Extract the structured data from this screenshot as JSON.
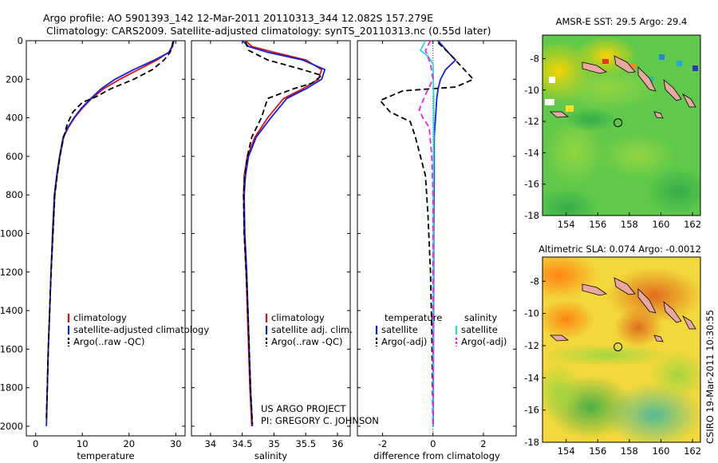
{
  "header": {
    "line1": "Argo profile: AO 5901393_142 12-Mar-2011 20110313_344 12.082S 157.279E",
    "line2": "Climatology: CARS2009. Satellite-adjusted climatology: synTS_20110313.nc (0.55d later)"
  },
  "annotations": {
    "project": "US ARGO PROJECT",
    "pi": "PI: GREGORY C. JOHNSON",
    "stamp": "CSIRO 19-Mar-2011 10:30:55"
  },
  "colors": {
    "climatology": "#dd1111",
    "satellite": "#1122dd",
    "argo": "#000000",
    "cyan": "#22dddd",
    "magenta": "#ee22ee"
  },
  "chart_data": [
    {
      "type": "line",
      "xlabel": "temperature",
      "ylabel": "",
      "xlim": [
        -2,
        32
      ],
      "ylim": [
        2050,
        0
      ],
      "xticks": [
        0,
        10,
        20,
        30
      ],
      "yticks": [
        0,
        200,
        400,
        600,
        800,
        1000,
        1200,
        1400,
        1600,
        1800,
        2000
      ],
      "legend": {
        "placement": "lower-center",
        "entries": [
          "climatology",
          "satellite-adjusted climatology",
          "Argo(..raw -QC)"
        ]
      },
      "series": [
        {
          "name": "climatology",
          "color": "#dd1111",
          "dash": "solid",
          "points": [
            [
              29.5,
              0
            ],
            [
              29.2,
              30
            ],
            [
              28.5,
              60
            ],
            [
              26,
              100
            ],
            [
              22,
              150
            ],
            [
              18,
              200
            ],
            [
              14.5,
              250
            ],
            [
              12,
              300
            ],
            [
              10,
              350
            ],
            [
              8.3,
              400
            ],
            [
              7,
              450
            ],
            [
              6,
              500
            ],
            [
              5.2,
              600
            ],
            [
              4.6,
              700
            ],
            [
              4.1,
              800
            ],
            [
              3.7,
              1000
            ],
            [
              3.3,
              1200
            ],
            [
              3,
              1400
            ],
            [
              2.7,
              1600
            ],
            [
              2.5,
              1800
            ],
            [
              2.3,
              1950
            ]
          ]
        },
        {
          "name": "satellite-adjusted climatology",
          "color": "#1122dd",
          "dash": "solid",
          "points": [
            [
              29.6,
              0
            ],
            [
              29.3,
              30
            ],
            [
              28.6,
              60
            ],
            [
              25.5,
              100
            ],
            [
              21,
              150
            ],
            [
              17,
              200
            ],
            [
              14,
              250
            ],
            [
              11.8,
              300
            ],
            [
              9.8,
              350
            ],
            [
              8.2,
              400
            ],
            [
              6.9,
              450
            ],
            [
              5.9,
              500
            ],
            [
              5.1,
              600
            ],
            [
              4.5,
              700
            ],
            [
              4,
              800
            ],
            [
              3.6,
              1000
            ],
            [
              3.3,
              1200
            ],
            [
              3,
              1400
            ],
            [
              2.7,
              1600
            ],
            [
              2.5,
              1800
            ],
            [
              2.3,
              2000
            ]
          ]
        },
        {
          "name": "Argo(..raw -QC)",
          "color": "#000000",
          "dash": "dashed",
          "points": [
            [
              29.4,
              5
            ],
            [
              29.2,
              30
            ],
            [
              28.8,
              60
            ],
            [
              27.5,
              100
            ],
            [
              25,
              150
            ],
            [
              21,
              200
            ],
            [
              16,
              250
            ],
            [
              13,
              290
            ],
            [
              10,
              320
            ],
            [
              8,
              370
            ],
            [
              6.8,
              430
            ],
            [
              6,
              500
            ],
            [
              5.2,
              600
            ],
            [
              4.6,
              700
            ],
            [
              4.1,
              800
            ],
            [
              3.7,
              1000
            ],
            [
              3.3,
              1200
            ],
            [
              3,
              1400
            ],
            [
              2.7,
              1600
            ],
            [
              2.5,
              1800
            ],
            [
              2.3,
              1960
            ]
          ]
        }
      ]
    },
    {
      "type": "line",
      "xlabel": "salinity",
      "ylabel": "",
      "xlim": [
        33.7,
        36.2
      ],
      "ylim": [
        2050,
        0
      ],
      "xticks": [
        34,
        34.5,
        35,
        35.5,
        36
      ],
      "legend": {
        "placement": "lower-center",
        "entries": [
          "climatology",
          "satellite adj. clim.",
          "Argo(..raw -QC)"
        ]
      },
      "series": [
        {
          "name": "climatology",
          "color": "#dd1111",
          "dash": "solid",
          "points": [
            [
              34.55,
              0
            ],
            [
              34.65,
              30
            ],
            [
              35,
              60
            ],
            [
              35.5,
              100
            ],
            [
              35.75,
              150
            ],
            [
              35.7,
              200
            ],
            [
              35.45,
              250
            ],
            [
              35.15,
              300
            ],
            [
              34.9,
              400
            ],
            [
              34.7,
              500
            ],
            [
              34.58,
              600
            ],
            [
              34.53,
              700
            ],
            [
              34.52,
              800
            ],
            [
              34.53,
              1000
            ],
            [
              34.56,
              1200
            ],
            [
              34.58,
              1400
            ],
            [
              34.6,
              1600
            ],
            [
              34.62,
              1800
            ],
            [
              34.65,
              2000
            ]
          ]
        },
        {
          "name": "satellite adj. clim.",
          "color": "#1122dd",
          "dash": "solid",
          "points": [
            [
              34.5,
              0
            ],
            [
              34.6,
              30
            ],
            [
              34.9,
              60
            ],
            [
              35.45,
              100
            ],
            [
              35.8,
              150
            ],
            [
              35.75,
              200
            ],
            [
              35.5,
              250
            ],
            [
              35.2,
              300
            ],
            [
              34.95,
              400
            ],
            [
              34.72,
              500
            ],
            [
              34.6,
              600
            ],
            [
              34.55,
              700
            ],
            [
              34.53,
              800
            ],
            [
              34.54,
              1000
            ],
            [
              34.57,
              1200
            ],
            [
              34.59,
              1400
            ],
            [
              34.61,
              1600
            ],
            [
              34.63,
              1800
            ],
            [
              34.66,
              2000
            ]
          ]
        },
        {
          "name": "Argo(..raw -QC)",
          "color": "#000000",
          "dash": "dashed",
          "points": [
            [
              34.55,
              5
            ],
            [
              34.6,
              50
            ],
            [
              34.9,
              100
            ],
            [
              35.45,
              150
            ],
            [
              35.75,
              180
            ],
            [
              35.6,
              220
            ],
            [
              35.3,
              250
            ],
            [
              34.9,
              300
            ],
            [
              34.8,
              400
            ],
            [
              34.65,
              500
            ],
            [
              34.58,
              600
            ],
            [
              34.54,
              700
            ],
            [
              34.52,
              800
            ],
            [
              34.53,
              1000
            ],
            [
              34.56,
              1200
            ],
            [
              34.59,
              1400
            ],
            [
              34.61,
              1600
            ],
            [
              34.63,
              1800
            ],
            [
              34.66,
              1990
            ]
          ]
        }
      ]
    },
    {
      "type": "line",
      "xlabel": "difference from climatology",
      "ylabel": "",
      "xlim": [
        -3,
        3.3
      ],
      "ylim": [
        2050,
        0
      ],
      "xticks": [
        -2,
        0,
        2
      ],
      "legend": {
        "placement": "lower-center",
        "entries": [
          "temperature",
          "salinity",
          "satellite",
          "satellite",
          "Argo(-adj)",
          "Argo(-adj)"
        ]
      },
      "series": [
        {
          "name": "satellite",
          "color": "#1122dd",
          "dash": "solid",
          "points": [
            [
              0.2,
              0
            ],
            [
              0.4,
              30
            ],
            [
              0.6,
              60
            ],
            [
              0.9,
              100
            ],
            [
              0.5,
              150
            ],
            [
              0.3,
              200
            ],
            [
              0.2,
              250
            ],
            [
              0.15,
              300
            ],
            [
              0.1,
              400
            ],
            [
              0.05,
              500
            ],
            [
              0.05,
              700
            ],
            [
              0.03,
              1000
            ],
            [
              0.02,
              1500
            ],
            [
              0.01,
              2000
            ]
          ]
        },
        {
          "name": "Argo(-adj)",
          "color": "#000000",
          "dash": "dashed",
          "points": [
            [
              0.2,
              10
            ],
            [
              0.6,
              60
            ],
            [
              1.6,
              200
            ],
            [
              0.9,
              240
            ],
            [
              -1.2,
              260
            ],
            [
              -2.1,
              310
            ],
            [
              -1.7,
              370
            ],
            [
              -0.9,
              420
            ],
            [
              -0.7,
              500
            ],
            [
              -0.5,
              600
            ],
            [
              -0.3,
              700
            ],
            [
              -0.2,
              900
            ],
            [
              -0.1,
              1200
            ],
            [
              -0.05,
              1500
            ],
            [
              0,
              2000
            ]
          ]
        },
        {
          "name": "satellite",
          "color": "#22dddd",
          "dash": "solid",
          "points": [
            [
              -0.3,
              0
            ],
            [
              -0.5,
              50
            ],
            [
              -0.2,
              80
            ],
            [
              0,
              120
            ],
            [
              0.03,
              300
            ],
            [
              0.02,
              700
            ],
            [
              0.01,
              1200
            ],
            [
              0,
              2000
            ]
          ]
        },
        {
          "name": "Argo(-adj)",
          "color": "#ee22ee",
          "dash": "dashed",
          "points": [
            [
              -0.1,
              0
            ],
            [
              -0.3,
              50
            ],
            [
              -0.1,
              120
            ],
            [
              0,
              200
            ],
            [
              -0.3,
              280
            ],
            [
              -0.55,
              360
            ],
            [
              -0.4,
              400
            ],
            [
              -0.15,
              450
            ],
            [
              -0.05,
              600
            ],
            [
              0,
              800
            ],
            [
              0,
              2000
            ]
          ]
        }
      ]
    },
    {
      "type": "heatmap",
      "title": "AMSR-E SST: 29.5 Argo: 29.4",
      "xlim": [
        152.5,
        162.5
      ],
      "ylim": [
        -18,
        -6.5
      ],
      "xticks": [
        154,
        156,
        158,
        160,
        162
      ],
      "yticks": [
        -8,
        -10,
        -12,
        -14,
        -16,
        -18
      ],
      "marker": {
        "lon": 157.279,
        "lat": -12.082
      }
    },
    {
      "type": "heatmap",
      "title": "Altimetric SLA: 0.074 Argo: -0.0012",
      "xlim": [
        152.5,
        162.5
      ],
      "ylim": [
        -18,
        -6.5
      ],
      "xticks": [
        154,
        156,
        158,
        160,
        162
      ],
      "yticks": [
        -8,
        -10,
        -12,
        -14,
        -16,
        -18
      ],
      "marker": {
        "lon": 157.279,
        "lat": -12.082
      }
    }
  ]
}
